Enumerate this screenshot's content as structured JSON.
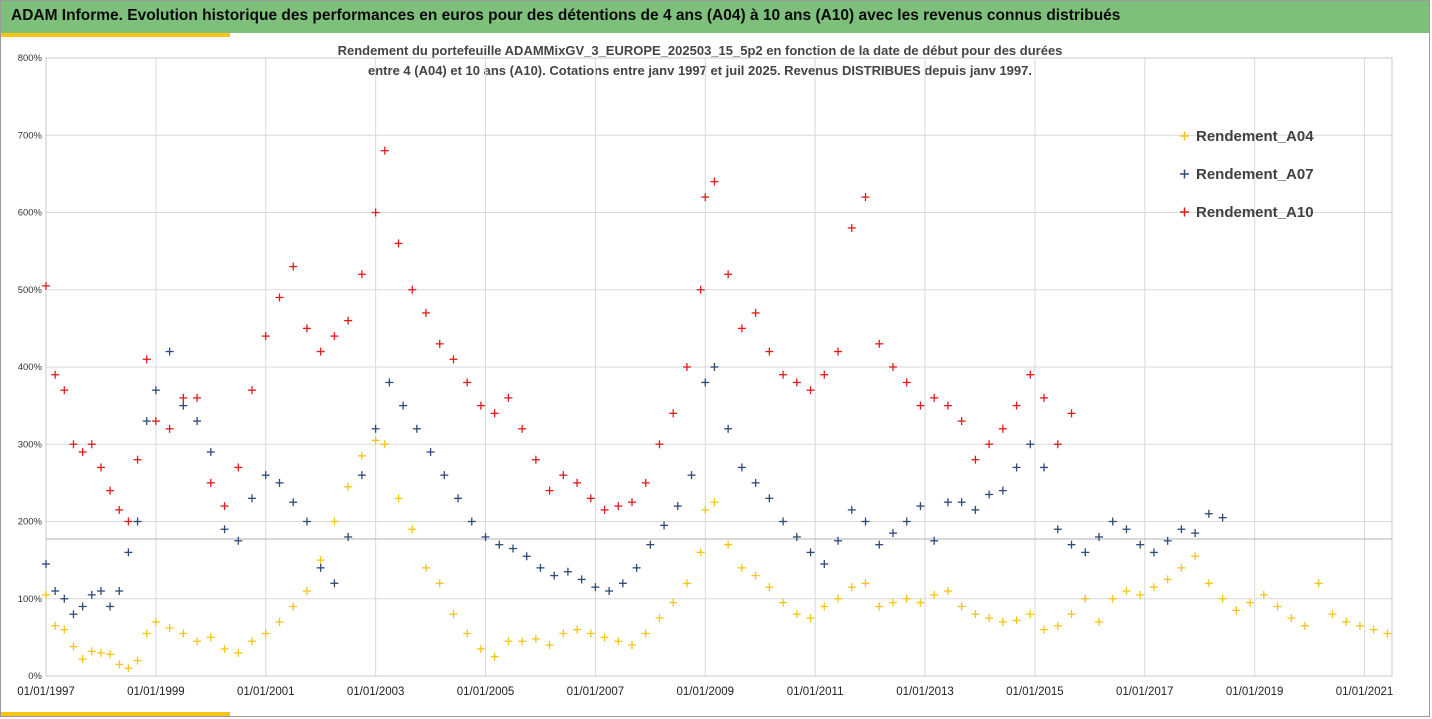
{
  "header": {
    "title": "ADAM Informe. Evolution historique des performances en euros pour des détentions de 4 ans (A04) à 10 ans (A10) avec les revenus connus distribués"
  },
  "colors": {
    "banner": "#7ec07b",
    "accent": "#f5c518",
    "Rendement_A04": "#f5c518",
    "Rendement_A07": "#2e4a78",
    "Rendement_A10": "#e31b1b",
    "grid": "#d9d9d9"
  },
  "chart_data": {
    "type": "scatter",
    "title_lines": [
      "Rendement du portefeuille ADAMMixGV_3_EUROPE_202503_15_5p2  en fonction de la date de début pour des durées",
      "entre 4 (A04) et 10 ans (A10). Cotations entre janv 1997 et juil 2025. Revenus DISTRIBUES depuis janv 1997."
    ],
    "xlabel": "",
    "ylabel": "",
    "x_range": [
      "01/01/1997",
      "07/07/2021"
    ],
    "ylim": [
      0,
      800
    ],
    "y_ticks": [
      "0%",
      "100%",
      "200%",
      "300%",
      "400%",
      "500%",
      "600%",
      "700%",
      "800%"
    ],
    "x_ticks": [
      "01/01/1997",
      "01/01/1999",
      "01/01/2001",
      "01/01/2003",
      "01/01/2005",
      "01/01/2007",
      "01/01/2009",
      "01/01/2011",
      "01/01/2013",
      "01/01/2015",
      "01/01/2017",
      "01/01/2019",
      "01/01/2021"
    ],
    "grid": true,
    "legend_position": "right",
    "marker": "+",
    "series": [
      {
        "name": "Rendement_A04",
        "points": [
          [
            "1997-01",
            105
          ],
          [
            "1997-03",
            65
          ],
          [
            "1997-05",
            60
          ],
          [
            "1997-07",
            38
          ],
          [
            "1997-09",
            22
          ],
          [
            "1997-11",
            32
          ],
          [
            "1998-01",
            30
          ],
          [
            "1998-03",
            28
          ],
          [
            "1998-05",
            15
          ],
          [
            "1998-07",
            10
          ],
          [
            "1998-09",
            20
          ],
          [
            "1998-11",
            55
          ],
          [
            "1999-01",
            70
          ],
          [
            "1999-04",
            62
          ],
          [
            "1999-07",
            55
          ],
          [
            "1999-10",
            45
          ],
          [
            "2000-01",
            50
          ],
          [
            "2000-04",
            35
          ],
          [
            "2000-07",
            30
          ],
          [
            "2000-10",
            45
          ],
          [
            "2001-01",
            55
          ],
          [
            "2001-04",
            70
          ],
          [
            "2001-07",
            90
          ],
          [
            "2001-10",
            110
          ],
          [
            "2002-01",
            150
          ],
          [
            "2002-04",
            200
          ],
          [
            "2002-07",
            245
          ],
          [
            "2002-10",
            285
          ],
          [
            "2003-01",
            305
          ],
          [
            "2003-03",
            300
          ],
          [
            "2003-06",
            230
          ],
          [
            "2003-09",
            190
          ],
          [
            "2003-12",
            140
          ],
          [
            "2004-03",
            120
          ],
          [
            "2004-06",
            80
          ],
          [
            "2004-09",
            55
          ],
          [
            "2004-12",
            35
          ],
          [
            "2005-03",
            25
          ],
          [
            "2005-06",
            45
          ],
          [
            "2005-09",
            45
          ],
          [
            "2005-12",
            48
          ],
          [
            "2006-03",
            40
          ],
          [
            "2006-06",
            55
          ],
          [
            "2006-09",
            60
          ],
          [
            "2006-12",
            55
          ],
          [
            "2007-03",
            50
          ],
          [
            "2007-06",
            45
          ],
          [
            "2007-09",
            40
          ],
          [
            "2007-12",
            55
          ],
          [
            "2008-03",
            75
          ],
          [
            "2008-06",
            95
          ],
          [
            "2008-09",
            120
          ],
          [
            "2008-12",
            160
          ],
          [
            "2009-01",
            215
          ],
          [
            "2009-03",
            225
          ],
          [
            "2009-06",
            170
          ],
          [
            "2009-09",
            140
          ],
          [
            "2009-12",
            130
          ],
          [
            "2010-03",
            115
          ],
          [
            "2010-06",
            95
          ],
          [
            "2010-09",
            80
          ],
          [
            "2010-12",
            75
          ],
          [
            "2011-03",
            90
          ],
          [
            "2011-06",
            100
          ],
          [
            "2011-09",
            115
          ],
          [
            "2011-12",
            120
          ],
          [
            "2012-03",
            90
          ],
          [
            "2012-06",
            95
          ],
          [
            "2012-09",
            100
          ],
          [
            "2012-12",
            95
          ],
          [
            "2013-03",
            105
          ],
          [
            "2013-06",
            110
          ],
          [
            "2013-09",
            90
          ],
          [
            "2013-12",
            80
          ],
          [
            "2014-03",
            75
          ],
          [
            "2014-06",
            70
          ],
          [
            "2014-09",
            72
          ],
          [
            "2014-12",
            80
          ],
          [
            "2015-03",
            60
          ],
          [
            "2015-06",
            65
          ],
          [
            "2015-09",
            80
          ],
          [
            "2015-12",
            100
          ],
          [
            "2016-03",
            70
          ],
          [
            "2016-06",
            100
          ],
          [
            "2016-09",
            110
          ],
          [
            "2016-12",
            105
          ],
          [
            "2017-03",
            115
          ],
          [
            "2017-06",
            125
          ],
          [
            "2017-09",
            140
          ],
          [
            "2017-12",
            155
          ],
          [
            "2018-03",
            120
          ],
          [
            "2018-06",
            100
          ],
          [
            "2018-09",
            85
          ],
          [
            "2018-12",
            95
          ],
          [
            "2019-03",
            105
          ],
          [
            "2019-06",
            90
          ],
          [
            "2019-09",
            75
          ],
          [
            "2019-12",
            65
          ],
          [
            "2020-03",
            120
          ],
          [
            "2020-06",
            80
          ],
          [
            "2020-09",
            70
          ],
          [
            "2020-12",
            65
          ],
          [
            "2021-03",
            60
          ],
          [
            "2021-06",
            55
          ]
        ]
      },
      {
        "name": "Rendement_A07",
        "points": [
          [
            "1997-01",
            145
          ],
          [
            "1997-03",
            110
          ],
          [
            "1997-05",
            100
          ],
          [
            "1997-07",
            80
          ],
          [
            "1997-09",
            90
          ],
          [
            "1997-11",
            105
          ],
          [
            "1998-01",
            110
          ],
          [
            "1998-03",
            90
          ],
          [
            "1998-05",
            110
          ],
          [
            "1998-07",
            160
          ],
          [
            "1998-09",
            200
          ],
          [
            "1998-11",
            330
          ],
          [
            "1999-01",
            370
          ],
          [
            "1999-04",
            420
          ],
          [
            "1999-07",
            350
          ],
          [
            "1999-10",
            330
          ],
          [
            "2000-01",
            290
          ],
          [
            "2000-04",
            190
          ],
          [
            "2000-07",
            175
          ],
          [
            "2000-10",
            230
          ],
          [
            "2001-01",
            260
          ],
          [
            "2001-04",
            250
          ],
          [
            "2001-07",
            225
          ],
          [
            "2001-10",
            200
          ],
          [
            "2002-01",
            140
          ],
          [
            "2002-04",
            120
          ],
          [
            "2002-07",
            180
          ],
          [
            "2002-10",
            260
          ],
          [
            "2003-01",
            320
          ],
          [
            "2003-04",
            380
          ],
          [
            "2003-07",
            350
          ],
          [
            "2003-10",
            320
          ],
          [
            "2004-01",
            290
          ],
          [
            "2004-04",
            260
          ],
          [
            "2004-07",
            230
          ],
          [
            "2004-10",
            200
          ],
          [
            "2005-01",
            180
          ],
          [
            "2005-04",
            170
          ],
          [
            "2005-07",
            165
          ],
          [
            "2005-10",
            155
          ],
          [
            "2006-01",
            140
          ],
          [
            "2006-04",
            130
          ],
          [
            "2006-07",
            135
          ],
          [
            "2006-10",
            125
          ],
          [
            "2007-01",
            115
          ],
          [
            "2007-04",
            110
          ],
          [
            "2007-07",
            120
          ],
          [
            "2007-10",
            140
          ],
          [
            "2008-01",
            170
          ],
          [
            "2008-04",
            195
          ],
          [
            "2008-07",
            220
          ],
          [
            "2008-10",
            260
          ],
          [
            "2009-01",
            380
          ],
          [
            "2009-03",
            400
          ],
          [
            "2009-06",
            320
          ],
          [
            "2009-09",
            270
          ],
          [
            "2009-12",
            250
          ],
          [
            "2010-03",
            230
          ],
          [
            "2010-06",
            200
          ],
          [
            "2010-09",
            180
          ],
          [
            "2010-12",
            160
          ],
          [
            "2011-03",
            145
          ],
          [
            "2011-06",
            175
          ],
          [
            "2011-09",
            215
          ],
          [
            "2011-12",
            200
          ],
          [
            "2012-03",
            170
          ],
          [
            "2012-06",
            185
          ],
          [
            "2012-09",
            200
          ],
          [
            "2012-12",
            220
          ],
          [
            "2013-03",
            175
          ],
          [
            "2013-06",
            225
          ],
          [
            "2013-09",
            225
          ],
          [
            "2013-12",
            215
          ],
          [
            "2014-03",
            235
          ],
          [
            "2014-06",
            240
          ],
          [
            "2014-09",
            270
          ],
          [
            "2014-12",
            300
          ],
          [
            "2015-03",
            270
          ],
          [
            "2015-06",
            190
          ],
          [
            "2015-09",
            170
          ],
          [
            "2015-12",
            160
          ],
          [
            "2016-03",
            180
          ],
          [
            "2016-06",
            200
          ],
          [
            "2016-09",
            190
          ],
          [
            "2016-12",
            170
          ],
          [
            "2017-03",
            160
          ],
          [
            "2017-06",
            175
          ],
          [
            "2017-09",
            190
          ],
          [
            "2017-12",
            185
          ],
          [
            "2018-03",
            210
          ],
          [
            "2018-06",
            205
          ]
        ]
      },
      {
        "name": "Rendement_A10",
        "points": [
          [
            "1997-01",
            505
          ],
          [
            "1997-03",
            390
          ],
          [
            "1997-05",
            370
          ],
          [
            "1997-07",
            300
          ],
          [
            "1997-09",
            290
          ],
          [
            "1997-11",
            300
          ],
          [
            "1998-01",
            270
          ],
          [
            "1998-03",
            240
          ],
          [
            "1998-05",
            215
          ],
          [
            "1998-07",
            200
          ],
          [
            "1998-09",
            280
          ],
          [
            "1998-11",
            410
          ],
          [
            "1999-01",
            330
          ],
          [
            "1999-04",
            320
          ],
          [
            "1999-07",
            360
          ],
          [
            "1999-10",
            360
          ],
          [
            "2000-01",
            250
          ],
          [
            "2000-04",
            220
          ],
          [
            "2000-07",
            270
          ],
          [
            "2000-10",
            370
          ],
          [
            "2001-01",
            440
          ],
          [
            "2001-04",
            490
          ],
          [
            "2001-07",
            530
          ],
          [
            "2001-10",
            450
          ],
          [
            "2002-01",
            420
          ],
          [
            "2002-04",
            440
          ],
          [
            "2002-07",
            460
          ],
          [
            "2002-10",
            520
          ],
          [
            "2003-01",
            600
          ],
          [
            "2003-03",
            680
          ],
          [
            "2003-06",
            560
          ],
          [
            "2003-09",
            500
          ],
          [
            "2003-12",
            470
          ],
          [
            "2004-03",
            430
          ],
          [
            "2004-06",
            410
          ],
          [
            "2004-09",
            380
          ],
          [
            "2004-12",
            350
          ],
          [
            "2005-03",
            340
          ],
          [
            "2005-06",
            360
          ],
          [
            "2005-09",
            320
          ],
          [
            "2005-12",
            280
          ],
          [
            "2006-03",
            240
          ],
          [
            "2006-06",
            260
          ],
          [
            "2006-09",
            250
          ],
          [
            "2006-12",
            230
          ],
          [
            "2007-03",
            215
          ],
          [
            "2007-06",
            220
          ],
          [
            "2007-09",
            225
          ],
          [
            "2007-12",
            250
          ],
          [
            "2008-03",
            300
          ],
          [
            "2008-06",
            340
          ],
          [
            "2008-09",
            400
          ],
          [
            "2008-12",
            500
          ],
          [
            "2009-01",
            620
          ],
          [
            "2009-03",
            640
          ],
          [
            "2009-06",
            520
          ],
          [
            "2009-09",
            450
          ],
          [
            "2009-12",
            470
          ],
          [
            "2010-03",
            420
          ],
          [
            "2010-06",
            390
          ],
          [
            "2010-09",
            380
          ],
          [
            "2010-12",
            370
          ],
          [
            "2011-03",
            390
          ],
          [
            "2011-06",
            420
          ],
          [
            "2011-09",
            580
          ],
          [
            "2011-12",
            620
          ],
          [
            "2012-03",
            430
          ],
          [
            "2012-06",
            400
          ],
          [
            "2012-09",
            380
          ],
          [
            "2012-12",
            350
          ],
          [
            "2013-03",
            360
          ],
          [
            "2013-06",
            350
          ],
          [
            "2013-09",
            330
          ],
          [
            "2013-12",
            280
          ],
          [
            "2014-03",
            300
          ],
          [
            "2014-06",
            320
          ],
          [
            "2014-09",
            350
          ],
          [
            "2014-12",
            390
          ],
          [
            "2015-03",
            360
          ],
          [
            "2015-06",
            300
          ],
          [
            "2015-09",
            340
          ]
        ]
      }
    ]
  },
  "legend": {
    "items": [
      "Rendement_A04",
      "Rendement_A07",
      "Rendement_A10"
    ]
  }
}
